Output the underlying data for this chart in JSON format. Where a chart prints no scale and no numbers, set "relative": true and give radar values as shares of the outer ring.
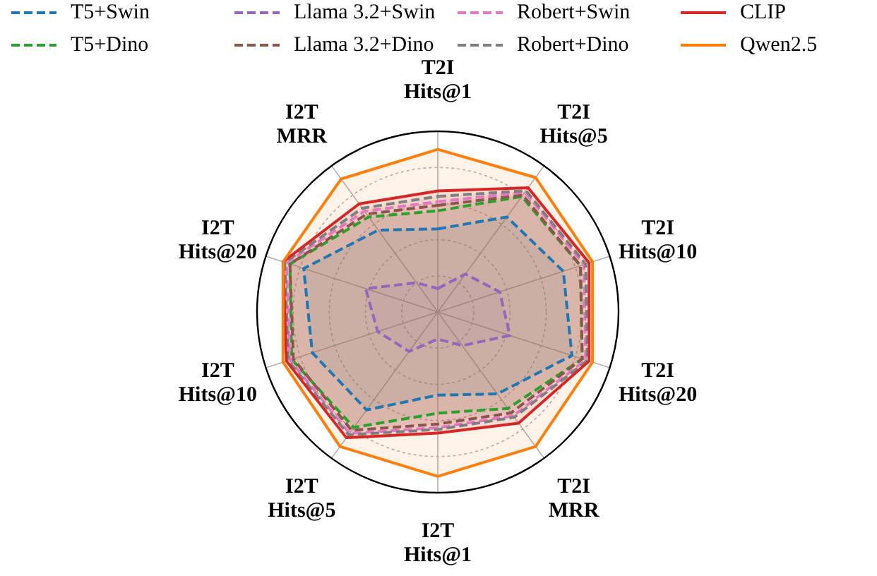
{
  "chart_data": {
    "type": "radar",
    "relative": true,
    "legend": "top",
    "grid": true,
    "categories": [
      "T2I Hits@1",
      "T2I Hits@5",
      "T2I Hits@10",
      "T2I Hits@20",
      "T2I MRR",
      "I2T Hits@1",
      "I2T Hits@5",
      "I2T Hits@10",
      "I2T Hits@20",
      "I2T MRR"
    ],
    "series": [
      {
        "name": "T5+Swin",
        "color": "#1f77b4",
        "line_style": "dashed",
        "values": [
          0.46,
          0.65,
          0.73,
          0.78,
          0.56,
          0.46,
          0.67,
          0.73,
          0.78,
          0.56
        ]
      },
      {
        "name": "T5+Dino",
        "color": "#2ca02c",
        "line_style": "dashed",
        "values": [
          0.56,
          0.79,
          0.83,
          0.84,
          0.66,
          0.56,
          0.79,
          0.85,
          0.86,
          0.65
        ]
      },
      {
        "name": "Llama 3.2+Swin",
        "color": "#9467bd",
        "line_style": "dashed",
        "values": [
          0.13,
          0.26,
          0.36,
          0.42,
          0.23,
          0.15,
          0.27,
          0.35,
          0.42,
          0.2
        ]
      },
      {
        "name": "Llama 3.2+Dino",
        "color": "#8c564b",
        "line_style": "dashed",
        "values": [
          0.59,
          0.8,
          0.83,
          0.84,
          0.69,
          0.62,
          0.81,
          0.84,
          0.86,
          0.67
        ]
      },
      {
        "name": "Robert+Swin",
        "color": "#e377c2",
        "line_style": "dashed",
        "values": [
          0.61,
          0.82,
          0.85,
          0.86,
          0.71,
          0.64,
          0.83,
          0.86,
          0.88,
          0.69
        ]
      },
      {
        "name": "Robert+Dino",
        "color": "#7f7f7f",
        "line_style": "dashed",
        "values": [
          0.64,
          0.83,
          0.86,
          0.87,
          0.72,
          0.65,
          0.84,
          0.87,
          0.89,
          0.71
        ]
      },
      {
        "name": "CLIP",
        "color": "#d62728",
        "line_style": "solid",
        "values": [
          0.67,
          0.85,
          0.88,
          0.88,
          0.76,
          0.67,
          0.86,
          0.88,
          0.9,
          0.74
        ]
      },
      {
        "name": "Qwen2.5",
        "color": "#ff7f0e",
        "line_style": "solid",
        "values": [
          0.9,
          0.92,
          0.9,
          0.9,
          0.92,
          0.91,
          0.92,
          0.9,
          0.9,
          0.91
        ]
      }
    ]
  }
}
